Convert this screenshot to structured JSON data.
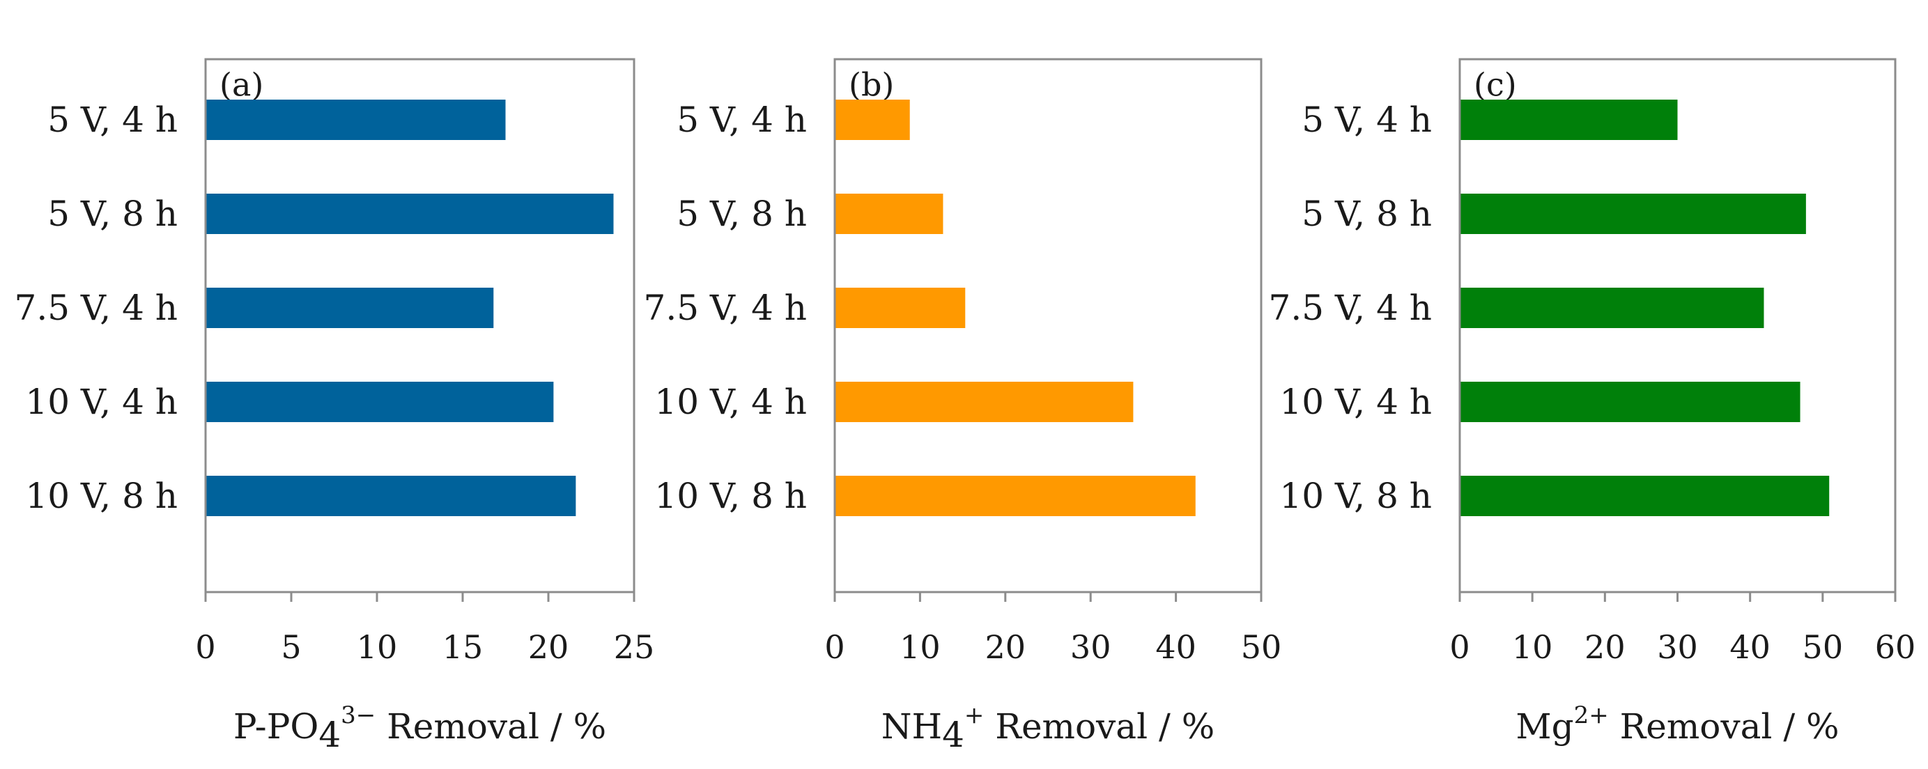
{
  "chart_data": [
    {
      "type": "bar",
      "orientation": "horizontal",
      "panel_label": "(a)",
      "categories": [
        "5 V, 4 h",
        "5 V, 8 h",
        "7.5 V, 4 h",
        "10 V, 4 h",
        "10 V, 8 h"
      ],
      "values": [
        17.5,
        23.8,
        16.8,
        20.3,
        21.6
      ],
      "xlim": [
        0,
        25
      ],
      "xticks": [
        "0",
        "5",
        "10",
        "15",
        "20",
        "25"
      ],
      "xlabel": {
        "pre": "P-PO",
        "sub": "4",
        "sup": "3−",
        "post": " Removal / %"
      },
      "color": "#00629b"
    },
    {
      "type": "bar",
      "orientation": "horizontal",
      "panel_label": "(b)",
      "categories": [
        "5 V, 4 h",
        "5 V, 8 h",
        "7.5 V, 4 h",
        "10 V, 4 h",
        "10 V, 8 h"
      ],
      "values": [
        8.8,
        12.7,
        15.3,
        35.0,
        42.3
      ],
      "xlim": [
        0,
        50
      ],
      "xticks": [
        "0",
        "10",
        "20",
        "30",
        "40",
        "50"
      ],
      "xlabel": {
        "pre": "NH",
        "sub": "4",
        "sup": "+",
        "post": " Removal / %"
      },
      "color": "#ff9900"
    },
    {
      "type": "bar",
      "orientation": "horizontal",
      "panel_label": "(c)",
      "categories": [
        "5 V, 4 h",
        "5 V, 8 h",
        "7.5 V, 4 h",
        "10 V, 4 h",
        "10 V, 8 h"
      ],
      "values": [
        30.0,
        47.7,
        41.9,
        46.9,
        50.9
      ],
      "xlim": [
        0,
        60
      ],
      "xticks": [
        "0",
        "10",
        "20",
        "30",
        "40",
        "50",
        "60"
      ],
      "xlabel": {
        "pre": "Mg",
        "sub": "",
        "sup": "2+",
        "post": " Removal / %"
      },
      "color": "#00800a"
    }
  ]
}
